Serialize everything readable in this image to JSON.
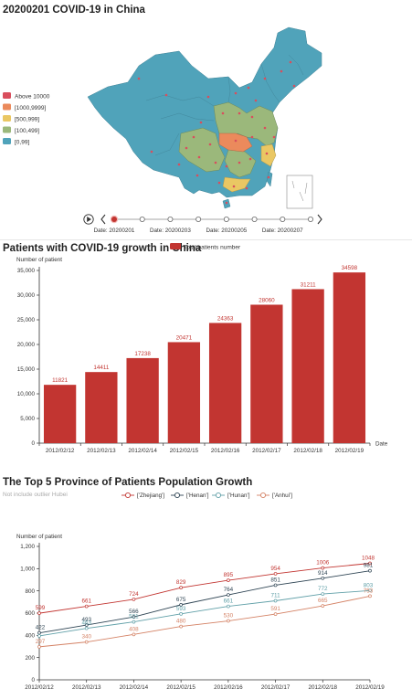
{
  "map": {
    "title": "20200201 COVID-19 in China",
    "legend": [
      {
        "label": "Above 10000",
        "color": "#d94e5d"
      },
      {
        "label": "[1000,9999]",
        "color": "#eb8a5c"
      },
      {
        "label": "[500,999]",
        "color": "#eac763"
      },
      {
        "label": "[100,499]",
        "color": "#9bb87b"
      },
      {
        "label": "[0,99]",
        "color": "#50a3ba"
      }
    ],
    "timeline": {
      "play_icon": "play-icon",
      "prev_icon": "chevron-left-icon",
      "next_icon": "chevron-right-icon",
      "active_index": 0,
      "point_count": 8,
      "labels": [
        "Date: 20200201",
        "Date: 20200203",
        "Date: 20200205",
        "Date: 20200207"
      ]
    }
  },
  "chart_data": [
    {
      "type": "bar",
      "title": "Patients with COVID-19 growth in China",
      "legend": "Total patients number",
      "legend_placement": "top",
      "ylabel": "Number of patient",
      "xlabel": "Date",
      "color": "#c23531",
      "categories": [
        "2012/02/12",
        "2012/02/13",
        "2012/02/14",
        "2012/02/15",
        "2012/02/16",
        "2012/02/17",
        "2012/02/18",
        "2012/02/19"
      ],
      "values": [
        11821,
        14411,
        17238,
        20471,
        24363,
        28060,
        31211,
        34598
      ],
      "ylim": [
        0,
        35000
      ],
      "yticks": [
        0,
        5000,
        10000,
        15000,
        20000,
        25000,
        30000,
        35000
      ],
      "ytick_labels": [
        "0",
        "5,000",
        "10,000",
        "15,000",
        "20,000",
        "25,000",
        "30,000",
        "35,000"
      ],
      "grid": false
    },
    {
      "type": "line",
      "title": "The Top 5 Province of Patients Population Growth",
      "subtitle": "Not include outlier Hubei",
      "ylabel": "Number of patient",
      "legend_placement": "top",
      "categories": [
        "2012/02/12",
        "2012/02/13",
        "2012/02/14",
        "2012/02/15",
        "2012/02/16",
        "2012/02/17",
        "2012/02/18",
        "2012/02/19"
      ],
      "ylim": [
        0,
        1200
      ],
      "yticks": [
        0,
        200,
        400,
        600,
        800,
        1000,
        1200
      ],
      "ytick_labels": [
        "0",
        "200",
        "400",
        "600",
        "800",
        "1,000",
        "1,200"
      ],
      "grid": false,
      "series": [
        {
          "name": "['Zhejiang']",
          "color": "#c23531",
          "values": [
            599,
            661,
            724,
            829,
            895,
            954,
            1006,
            1048
          ],
          "labels": [
            "599",
            "661",
            "724",
            "829",
            "895",
            "954",
            "1006",
            "1048"
          ]
        },
        {
          "name": "['Henan']",
          "color": "#2f4554",
          "values": [
            422,
            493,
            566,
            675,
            764,
            851,
            914,
            981
          ],
          "labels": [
            "422",
            "493",
            "566",
            "675",
            "764",
            "851",
            "914",
            "981"
          ]
        },
        {
          "name": "['Hunan']",
          "color": "#61a0a8",
          "values": [
            395,
            463,
            521,
            593,
            661,
            711,
            772,
            803
          ],
          "labels": [
            "",
            "463",
            "521",
            "593",
            "661",
            "711",
            "772",
            "803"
          ]
        },
        {
          "name": "['Anhui']",
          "color": "#d48265",
          "values": [
            297,
            340,
            408,
            480,
            530,
            591,
            665,
            753
          ],
          "labels": [
            "297",
            "340",
            "408",
            "480",
            "530",
            "591",
            "665",
            "753"
          ]
        }
      ]
    }
  ]
}
